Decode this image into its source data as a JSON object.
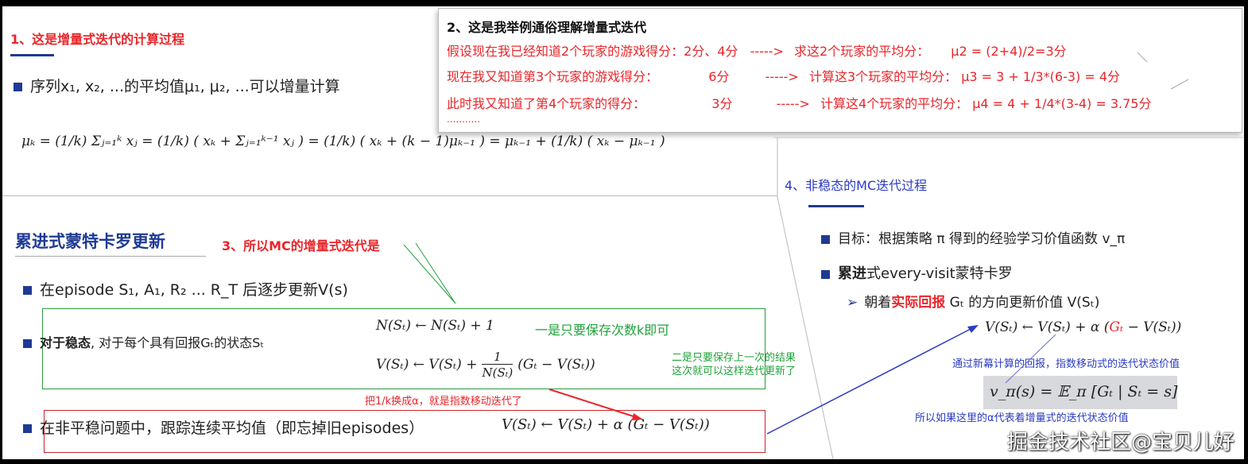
{
  "section1": {
    "title": "1、这是增量式迭代的计算过程",
    "bullet": "序列x₁, x₂, ...的平均值μ₁, μ₂, ...可以增量计算",
    "formula": "μₖ = (1/k) Σⱼ₌₁ᵏ xⱼ  =  (1/k) ( xₖ + Σⱼ₌₁ᵏ⁻¹ xⱼ )  =  (1/k) ( xₖ + (k − 1)μₖ₋₁ )  =  μₖ₋₁ + (1/k) ( xₖ − μₖ₋₁ )"
  },
  "section2": {
    "title": "2、这是我举例通俗理解增量式迭代",
    "rows": [
      {
        "left": "假设现在我已经知道2个玩家的游戏得分：2分、4分",
        "arrow": "----->",
        "right": "求这2个玩家的平均分：",
        "formula": "μ2 = (2+4)/2=3分"
      },
      {
        "left": "现在我又知道第3个玩家的游戏得分：",
        "score": "6分",
        "arrow": "----->",
        "right": "计算这3个玩家的平均分：",
        "formula": "μ3 = 3 + 1/3*(6-3) = 4分"
      },
      {
        "left": "此时我又知道了第4个玩家的得分：",
        "score": "3分",
        "arrow": "----->",
        "right": "计算这4个玩家的平均分：",
        "formula": "μ4 = 4 + 1/4*(3-4) = 3.75分"
      }
    ],
    "ellipsis": "..........."
  },
  "section3": {
    "heading": "累进式蒙特卡罗更新",
    "note": "3、所以MC的增量式迭代是",
    "bullet1": "在episode S₁, A₁, R₂ ... R_T 后逐步更新V(s)",
    "bullet2_bold": "对于稳态",
    "bullet2_rest": ", 对于每个具有回报Gₜ的状态Sₜ",
    "formula_n": "N(Sₜ) ← N(Sₜ) + 1",
    "formula_v_left": "V(Sₜ) ← V(Sₜ) +",
    "formula_v_num": "1",
    "formula_v_den": "N(Sₜ)",
    "formula_v_right": "(Gₜ − V(Sₜ))",
    "note_green1": "一是只要保存次数k即可",
    "note_green2a": "二是只要保存上一次的结果",
    "note_green2b": "这次就可以这样迭代更新了",
    "note_red": "把1/k换成α，就是指数移动迭代了",
    "bullet3": "在非平稳问题中，跟踪连续平均值（即忘掉旧episodes）",
    "formula_alpha": "V(Sₜ) ← V(Sₜ) + α (Gₜ − V(Sₜ))"
  },
  "section4": {
    "title": "4、非稳态的MC迭代过程",
    "bullet1": "目标：根据策略 π 得到的经验学习价值函数 v_π",
    "bullet2_bold": "累进",
    "bullet2_rest": "式every-visit蒙特卡罗",
    "sub_pre": "朝着",
    "sub_red": "实际回报",
    "sub_post": " Gₜ 的方向更新价值 V(Sₜ)",
    "formula_left": "V(Sₜ) ← V(Sₜ) + α (",
    "formula_g": "Gₜ",
    "formula_right": " − V(Sₜ))",
    "note_blue1": "通过新幕计算的回报，指数移动式的迭代状态价值",
    "value_formula": "v_π(s) = 𝔼_π [Gₜ | Sₜ = s]",
    "note_blue2": "所以如果这里的α代表着增量式的迭代状态价值"
  },
  "watermark": "掘金技术社区@宝贝儿好",
  "colors": {
    "red": "#e8262b",
    "blue": "#2b3bc0",
    "green": "#1fa33a",
    "navy": "#1f3a93"
  }
}
